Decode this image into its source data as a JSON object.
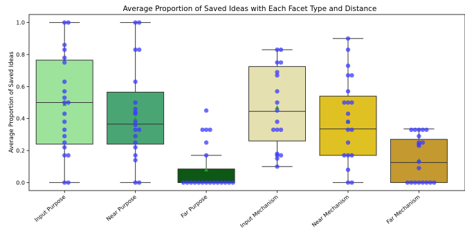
{
  "chart_data": {
    "type": "box",
    "title": "Average Proportion of Saved Ideas with Each Facet Type and Distance",
    "xlabel": "",
    "ylabel": "Average Proportion of Saved Ideas",
    "ylim": [
      -0.05,
      1.05
    ],
    "yticks": [
      "0.0",
      "0.2",
      "0.4",
      "0.6",
      "0.8",
      "1.0"
    ],
    "grid": false,
    "point_color": "#3b3bff",
    "mean_color": "#2ca02c",
    "categories": [
      "Input Purpose",
      "Near Purpose",
      "Far Purpose",
      "Input Mechanism",
      "Near Mechanism",
      "Far Mechanism"
    ],
    "boxes": [
      {
        "category": "Input Purpose",
        "color": "#9de39b",
        "whisker_low": 0.0,
        "q1": 0.24,
        "median": 0.5,
        "q3": 0.765,
        "whisker_high": 1.0,
        "mean": 0.49,
        "points": [
          1.0,
          1.0,
          0.86,
          0.83,
          0.78,
          0.75,
          0.63,
          0.57,
          0.53,
          0.5,
          0.5,
          0.43,
          0.38,
          0.33,
          0.29,
          0.25,
          0.22,
          0.17,
          0.17,
          0.0,
          0.0
        ]
      },
      {
        "category": "Near Purpose",
        "color": "#4aa574",
        "whisker_low": 0.0,
        "q1": 0.24,
        "median": 0.365,
        "q3": 0.565,
        "whisker_high": 1.0,
        "mean": 0.4,
        "points": [
          1.0,
          1.0,
          0.83,
          0.83,
          0.63,
          0.5,
          0.46,
          0.44,
          0.43,
          0.38,
          0.36,
          0.33,
          0.33,
          0.29,
          0.25,
          0.22,
          0.17,
          0.14,
          0.0,
          0.0
        ]
      },
      {
        "category": "Far Purpose",
        "color": "#0d5814",
        "whisker_low": 0.0,
        "q1": 0.0,
        "median": 0.0,
        "q3": 0.085,
        "whisker_high": 0.17,
        "mean": 0.08,
        "points": [
          0.45,
          0.33,
          0.33,
          0.33,
          0.25,
          0.17,
          0.0,
          0.0,
          0.0,
          0.0,
          0.0,
          0.0,
          0.0,
          0.0,
          0.0,
          0.0,
          0.0,
          0.0,
          0.0,
          0.0
        ]
      },
      {
        "category": "Input Mechanism",
        "color": "#e5e0b0",
        "whisker_low": 0.1,
        "q1": 0.26,
        "median": 0.445,
        "q3": 0.725,
        "whisker_high": 0.83,
        "mean": 0.47,
        "points": [
          0.83,
          0.83,
          0.75,
          0.75,
          0.69,
          0.67,
          0.57,
          0.5,
          0.45,
          0.38,
          0.33,
          0.33,
          0.33,
          0.18,
          0.17,
          0.17,
          0.15,
          0.1
        ]
      },
      {
        "category": "Near Mechanism",
        "color": "#e0c123",
        "whisker_low": 0.0,
        "q1": 0.17,
        "median": 0.335,
        "q3": 0.54,
        "whisker_high": 0.9,
        "mean": 0.38,
        "points": [
          0.9,
          0.83,
          0.73,
          0.67,
          0.67,
          0.57,
          0.5,
          0.5,
          0.5,
          0.43,
          0.38,
          0.33,
          0.33,
          0.25,
          0.17,
          0.17,
          0.17,
          0.08,
          0.0,
          0.0
        ]
      },
      {
        "category": "Far Mechanism",
        "color": "#c49a30",
        "whisker_low": 0.0,
        "q1": 0.0,
        "median": 0.125,
        "q3": 0.27,
        "whisker_high": 0.335,
        "mean": 0.14,
        "points": [
          0.33,
          0.33,
          0.33,
          0.33,
          0.33,
          0.29,
          0.25,
          0.25,
          0.24,
          0.23,
          0.13,
          0.09,
          0.0,
          0.0,
          0.0,
          0.0,
          0.0,
          0.0,
          0.0,
          0.0
        ]
      }
    ]
  }
}
